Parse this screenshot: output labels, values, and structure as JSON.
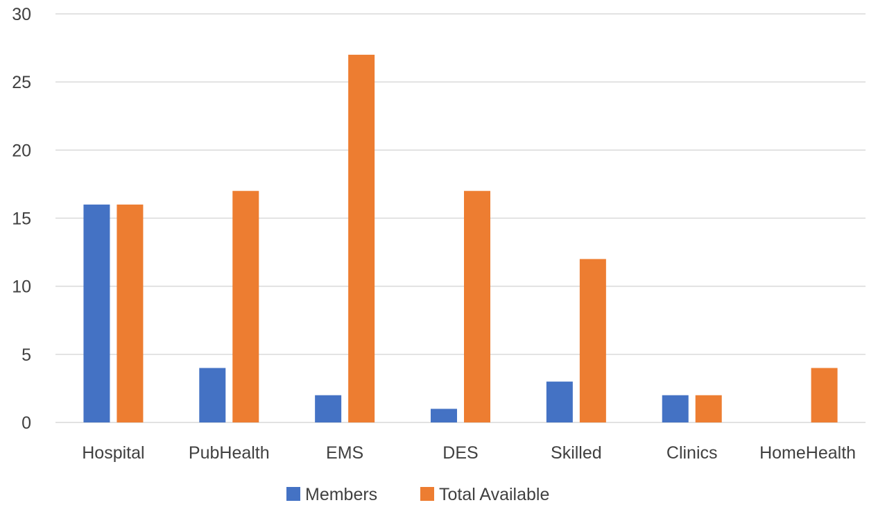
{
  "chart_data": {
    "type": "bar",
    "title": "",
    "xlabel": "",
    "ylabel": "",
    "categories": [
      "Hospital",
      "PubHealth",
      "EMS",
      "DES",
      "Skilled",
      "Clinics",
      "HomeHealth"
    ],
    "series": [
      {
        "name": "Members",
        "color": "#4472c4",
        "values": [
          16,
          4,
          2,
          1,
          3,
          2,
          0
        ]
      },
      {
        "name": "Total Available",
        "color": "#ed7d31",
        "values": [
          16,
          17,
          27,
          17,
          12,
          2,
          4
        ]
      }
    ],
    "ylim": [
      0,
      30
    ],
    "yticks": [
      "0",
      "5",
      "10",
      "15",
      "20",
      "25",
      "30"
    ],
    "grid": true,
    "legend": "bottom"
  }
}
